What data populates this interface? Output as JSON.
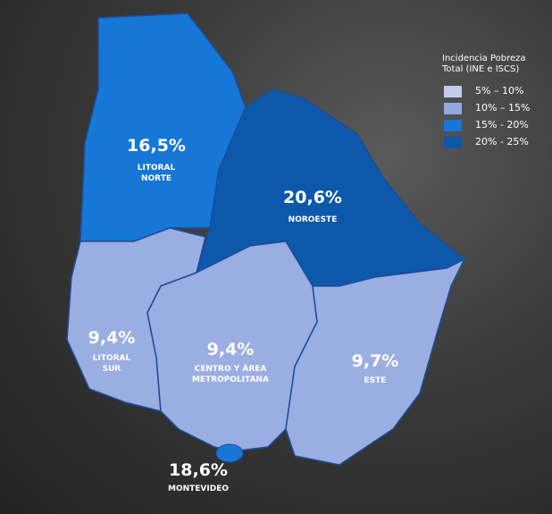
{
  "legend": {
    "title": "Incidencia Pobreza Total (INE e ISCS)",
    "items": [
      {
        "label": "5% – 10%",
        "color": "#c3cbee"
      },
      {
        "label": "10% – 15%",
        "color": "#94a9df"
      },
      {
        "label": "15% - 20%",
        "color": "#1677d6"
      },
      {
        "label": "20% - 25%",
        "color": "#0d58aa"
      }
    ]
  },
  "regions": [
    {
      "name": "LITORAL NORTE",
      "value": 16.5,
      "value_label": "16,5%",
      "color": "#1677d6"
    },
    {
      "name": "NOROESTE",
      "value": 20.6,
      "value_label": "20,6%",
      "color": "#0d58aa"
    },
    {
      "name": "LITORAL SUR",
      "value": 9.4,
      "value_label": "9,4%",
      "color": "#9aaee2"
    },
    {
      "name": "CENTRO Y ÁREA METROPOLITANA",
      "value": 9.4,
      "value_label": "9,4%",
      "color": "#9aaee2"
    },
    {
      "name": "ESTE",
      "value": 9.7,
      "value_label": "9,7%",
      "color": "#9aaee2"
    },
    {
      "name": "MONTEVIDEO",
      "value": 18.6,
      "value_label": "18,6%",
      "color": "#1677d6"
    }
  ]
}
